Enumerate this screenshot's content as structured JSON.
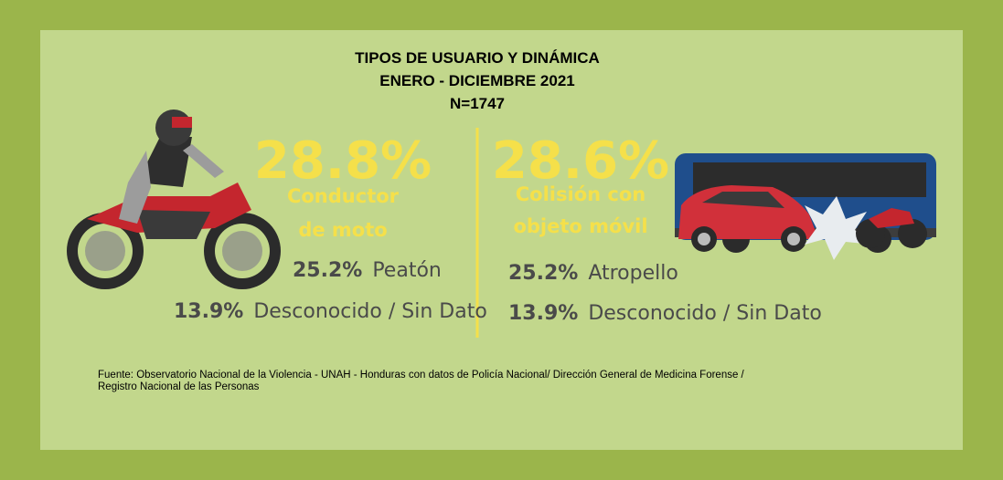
{
  "title": {
    "line1": "TIPOS DE USUARIO Y DINÁMICA",
    "line2": "ENERO - DICIEMBRE 2021",
    "line3": "N=1747"
  },
  "left": {
    "main_percent": "28.8%",
    "main_label_1": "Conductor",
    "main_label_2": "de moto",
    "items": [
      {
        "percent": "25.2%",
        "label": "Peatón"
      },
      {
        "percent": "13.9%",
        "label": "Desconocido / Sin Dato"
      }
    ]
  },
  "right": {
    "main_percent": "28.6%",
    "main_label_1": "Colisión con",
    "main_label_2": "objeto móvil",
    "items": [
      {
        "percent": "25.2%",
        "label": "Atropello"
      },
      {
        "percent": "13.9%",
        "label": "Desconocido / Sin Dato"
      }
    ]
  },
  "footer": {
    "line1": "Fuente: Observatorio Nacional de la Violencia - UNAH - Honduras con datos de Policía Nacional/ Dirección General de Medicina Forense /",
    "line2": "Registro Nacional de las Personas"
  }
}
